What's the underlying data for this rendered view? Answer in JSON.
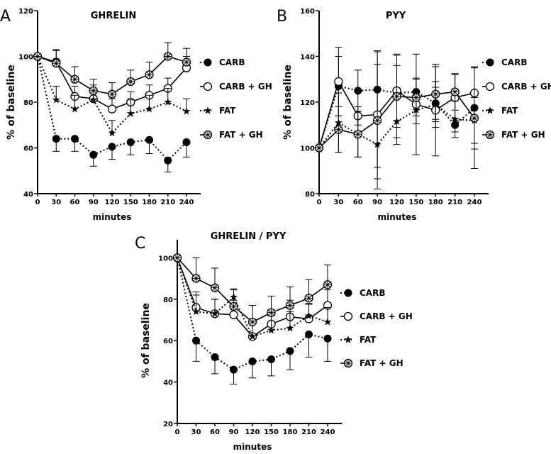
{
  "chart_data": [
    {
      "panel": "A",
      "type": "line",
      "title": "GHRELIN",
      "xlabel": "minutes",
      "ylabel": "% of baseline",
      "x": [
        0,
        30,
        60,
        90,
        120,
        150,
        180,
        210,
        240
      ],
      "xticks": [
        "0",
        "30",
        "60",
        "90",
        "120",
        "150",
        "180",
        "210",
        "240"
      ],
      "ylim": [
        40,
        120
      ],
      "yticks": [
        "40",
        "60",
        "80",
        "100",
        "120"
      ],
      "legend": "right",
      "series": [
        {
          "name": "CARB",
          "marker": "filled-circle",
          "line": "dotted",
          "values": [
            100,
            64,
            64,
            57,
            60.5,
            62.5,
            63.5,
            54.5,
            62.5
          ],
          "err": [
            0,
            5.5,
            5.5,
            5,
            5.5,
            5.5,
            6,
            5,
            6.5
          ]
        },
        {
          "name": "CARB + GH",
          "marker": "open-circle",
          "line": "solid",
          "values": [
            100,
            97.5,
            82.5,
            81.5,
            77,
            80,
            83,
            86,
            95
          ],
          "err": [
            0,
            5,
            4.5,
            4.5,
            4.5,
            4.5,
            4.5,
            4.5,
            5
          ]
        },
        {
          "name": "FAT",
          "marker": "star",
          "line": "dotted",
          "values": [
            100,
            81,
            77,
            81,
            66.5,
            75,
            77,
            80,
            76
          ],
          "err": [
            0,
            6,
            6,
            6.5,
            5.5,
            6,
            6,
            6,
            5.5
          ]
        },
        {
          "name": "FAT + GH",
          "marker": "crossed-circle",
          "line": "solid",
          "values": [
            100,
            97,
            90,
            85,
            83.5,
            89,
            92,
            100,
            97.5
          ],
          "err": [
            0,
            6,
            5.5,
            5,
            5,
            5,
            5.5,
            6,
            6
          ]
        }
      ]
    },
    {
      "panel": "B",
      "type": "line",
      "title": "PYY",
      "xlabel": "minutes",
      "ylabel": "% of baseline",
      "x": [
        0,
        30,
        60,
        90,
        120,
        150,
        180,
        210,
        240
      ],
      "xticks": [
        "0",
        "30",
        "60",
        "90",
        "120",
        "150",
        "180",
        "210",
        "240"
      ],
      "ylim": [
        80,
        160
      ],
      "yticks": [
        "80",
        "100",
        "120",
        "140",
        "160"
      ],
      "legend": "right",
      "series": [
        {
          "name": "CARB",
          "marker": "filled-circle",
          "line": "dotted",
          "values": [
            100,
            127,
            125,
            125.5,
            124,
            124.5,
            119.5,
            110,
            117.5
          ],
          "err": [
            0,
            13,
            9,
            11,
            12,
            6,
            7,
            3,
            18
          ]
        },
        {
          "name": "CARB + GH",
          "marker": "open-circle",
          "line": "solid",
          "values": [
            100,
            129,
            114,
            114.5,
            125,
            119,
            116.5,
            122,
            124
          ],
          "err": [
            0,
            15,
            4,
            28,
            16,
            22,
            20,
            10,
            11
          ]
        },
        {
          "name": "FAT",
          "marker": "star",
          "line": "dotted",
          "values": [
            100,
            111,
            106,
            101.5,
            111.5,
            116.5,
            119,
            112.5,
            112
          ],
          "err": [
            0,
            13,
            10,
            10,
            10,
            6,
            10,
            8,
            10
          ]
        },
        {
          "name": "FAT + GH",
          "marker": "crossed-circle",
          "line": "solid",
          "values": [
            100,
            108,
            106,
            112,
            122.5,
            122,
            123.5,
            124.5,
            113
          ],
          "err": [
            0,
            10,
            10,
            30,
            18,
            8,
            12,
            8,
            22
          ]
        }
      ]
    },
    {
      "panel": "C",
      "type": "line",
      "title": "GHRELIN / PYY",
      "xlabel": "minutes",
      "ylabel": "% of baseline",
      "x": [
        0,
        30,
        60,
        90,
        120,
        150,
        180,
        210,
        240
      ],
      "xticks": [
        "0",
        "30",
        "60",
        "90",
        "120",
        "150",
        "180",
        "210",
        "240"
      ],
      "ylim": [
        20,
        108
      ],
      "yticks": [
        "20",
        "40",
        "60",
        "80",
        "100"
      ],
      "legend": "right",
      "series": [
        {
          "name": "CARB",
          "marker": "filled-circle",
          "line": "dotted",
          "values": [
            100,
            60,
            52,
            46,
            50,
            51,
            55,
            63,
            61
          ],
          "err": [
            0,
            10,
            8,
            7,
            8,
            8,
            9,
            11,
            11
          ]
        },
        {
          "name": "CARB + GH",
          "marker": "open-circle",
          "line": "solid",
          "values": [
            100,
            76,
            73,
            72.5,
            62,
            68,
            71.5,
            70.5,
            77
          ],
          "err": [
            0,
            7.5,
            7,
            7,
            7,
            7,
            8,
            7,
            7.5
          ]
        },
        {
          "name": "FAT",
          "marker": "star",
          "line": "dotted",
          "values": [
            100,
            74,
            73,
            81,
            62,
            65,
            66,
            72,
            69
          ],
          "err": [
            0,
            8,
            7,
            4,
            7,
            7,
            8,
            6,
            7
          ]
        },
        {
          "name": "FAT + GH",
          "marker": "crossed-circle",
          "line": "solid",
          "values": [
            100,
            90,
            85.5,
            76.5,
            69,
            73.5,
            77,
            80.5,
            87
          ],
          "err": [
            0,
            10,
            9.5,
            8,
            8,
            8,
            9,
            9,
            9.5
          ]
        }
      ]
    }
  ]
}
